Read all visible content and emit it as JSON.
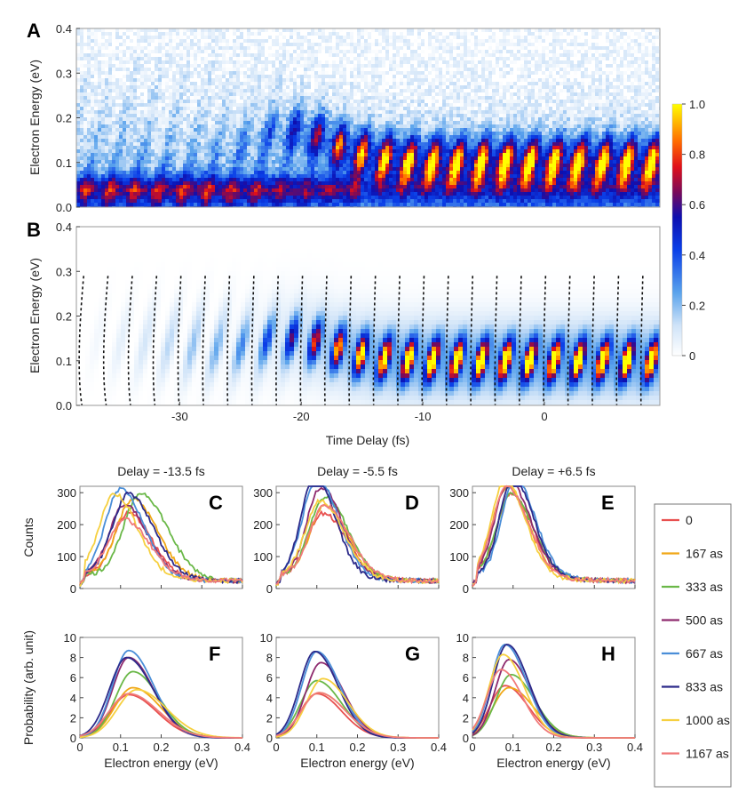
{
  "chart_data": [
    {
      "panel": "A",
      "type": "heatmap",
      "label": "A",
      "ylabel": "Electron Energy  (eV)",
      "xlabel": "",
      "xlim": [
        -38.5,
        9.5
      ],
      "ylim": [
        0,
        0.4
      ],
      "yticks": [
        "0.0",
        "0.1",
        "0.2",
        "0.3",
        "0.4"
      ],
      "fringe_period_fs": 2.0,
      "noise": true
    },
    {
      "panel": "B",
      "type": "heatmap",
      "label": "B",
      "ylabel": "Electron Energy  (eV)",
      "xlabel": "Time Delay  (fs)",
      "xlim": [
        -38.5,
        9.5
      ],
      "ylim": [
        0,
        0.4
      ],
      "xticks": [
        "-30",
        "-20",
        "-10",
        "0"
      ],
      "xtick_values": [
        -30,
        -20,
        -10,
        0
      ],
      "yticks": [
        "0.0",
        "0.1",
        "0.2",
        "0.3",
        "0.4"
      ],
      "fringe_period_fs": 2.0,
      "dashed_lines": true,
      "dashed_ymax": 0.29
    }
  ],
  "colorbar": {
    "ticks": [
      "1.0",
      "0.8",
      "0.6",
      "0.4",
      "0.2",
      "0"
    ],
    "tick_values": [
      1.0,
      0.8,
      0.6,
      0.4,
      0.2,
      0.0
    ],
    "stops": [
      {
        "v": 0.0,
        "c": "#ffffff"
      },
      {
        "v": 0.12,
        "c": "#cfe3f8"
      },
      {
        "v": 0.25,
        "c": "#5aa3ec"
      },
      {
        "v": 0.42,
        "c": "#0a3fe8"
      },
      {
        "v": 0.55,
        "c": "#0d0fb0"
      },
      {
        "v": 0.65,
        "c": "#7a0a5a"
      },
      {
        "v": 0.75,
        "c": "#e0101a"
      },
      {
        "v": 0.85,
        "c": "#ff6a00"
      },
      {
        "v": 1.0,
        "c": "#ffff00"
      }
    ]
  },
  "line_panels": {
    "titles": [
      "Delay = -13.5 fs",
      "Delay = -5.5 fs",
      "Delay = +6.5 fs"
    ],
    "top_labels": [
      "C",
      "D",
      "E"
    ],
    "bottom_labels": [
      "F",
      "G",
      "H"
    ],
    "top_ylabel": "Counts",
    "bottom_ylabel": "Probability (arb. unit)",
    "xlabel": "Electron energy (eV)",
    "xticks": [
      "0",
      "0.1",
      "0.2",
      "0.3",
      "0.4"
    ],
    "xtick_values": [
      0,
      0.1,
      0.2,
      0.3,
      0.4
    ],
    "top_yticks": [
      "0",
      "100",
      "200",
      "300"
    ],
    "top_ytick_values": [
      0,
      100,
      200,
      300
    ],
    "bottom_yticks": [
      "0",
      "2",
      "4",
      "6",
      "8",
      "10"
    ],
    "bottom_ytick_values": [
      0,
      2,
      4,
      6,
      8,
      10
    ],
    "top_ylim": [
      0,
      320
    ],
    "bottom_ylim": [
      0,
      10
    ],
    "xlim": [
      0,
      0.4
    ]
  },
  "legend": {
    "entries": [
      {
        "label": "0",
        "color": "#e8504f"
      },
      {
        "label": "167 as",
        "color": "#f0a818"
      },
      {
        "label": "333 as",
        "color": "#6ab848"
      },
      {
        "label": "500 as",
        "color": "#8e2a6e"
      },
      {
        "label": "667 as",
        "color": "#4a8ed8"
      },
      {
        "label": "833 as",
        "color": "#2c2a8a"
      },
      {
        "label": "1000 as",
        "color": "#f6d040"
      },
      {
        "label": "1167 as",
        "color": "#f07a7a"
      }
    ]
  },
  "series_params": {
    "C": [
      {
        "peak": 0.12,
        "amp": 200,
        "w": 0.07
      },
      {
        "peak": 0.13,
        "amp": 245,
        "w": 0.075
      },
      {
        "peak": 0.15,
        "amp": 265,
        "w": 0.08
      },
      {
        "peak": 0.11,
        "amp": 225,
        "w": 0.07
      },
      {
        "peak": 0.1,
        "amp": 275,
        "w": 0.07
      },
      {
        "peak": 0.12,
        "amp": 262,
        "w": 0.075
      },
      {
        "peak": 0.085,
        "amp": 258,
        "w": 0.07
      },
      {
        "peak": 0.11,
        "amp": 180,
        "w": 0.075
      }
    ],
    "D": [
      {
        "peak": 0.115,
        "amp": 200,
        "w": 0.07
      },
      {
        "peak": 0.12,
        "amp": 225,
        "w": 0.07
      },
      {
        "peak": 0.12,
        "amp": 252,
        "w": 0.07
      },
      {
        "peak": 0.11,
        "amp": 282,
        "w": 0.065
      },
      {
        "peak": 0.1,
        "amp": 312,
        "w": 0.065
      },
      {
        "peak": 0.095,
        "amp": 315,
        "w": 0.062
      },
      {
        "peak": 0.11,
        "amp": 240,
        "w": 0.07
      },
      {
        "peak": 0.12,
        "amp": 225,
        "w": 0.072
      }
    ],
    "E": [
      {
        "peak": 0.095,
        "amp": 262,
        "w": 0.065
      },
      {
        "peak": 0.085,
        "amp": 282,
        "w": 0.065
      },
      {
        "peak": 0.095,
        "amp": 256,
        "w": 0.068
      },
      {
        "peak": 0.09,
        "amp": 300,
        "w": 0.065
      },
      {
        "peak": 0.105,
        "amp": 306,
        "w": 0.062
      },
      {
        "peak": 0.1,
        "amp": 310,
        "w": 0.062
      },
      {
        "peak": 0.08,
        "amp": 300,
        "w": 0.062
      },
      {
        "peak": 0.085,
        "amp": 282,
        "w": 0.065
      }
    ],
    "F": [
      {
        "peak": 0.12,
        "amp": 4.3,
        "w": 0.085
      },
      {
        "peak": 0.13,
        "amp": 5.0,
        "w": 0.085
      },
      {
        "peak": 0.13,
        "amp": 6.6,
        "w": 0.08
      },
      {
        "peak": 0.12,
        "amp": 8.0,
        "w": 0.075
      },
      {
        "peak": 0.12,
        "amp": 8.7,
        "w": 0.075
      },
      {
        "peak": 0.115,
        "amp": 8.0,
        "w": 0.08
      },
      {
        "peak": 0.14,
        "amp": 4.8,
        "w": 0.09
      },
      {
        "peak": 0.12,
        "amp": 4.4,
        "w": 0.09
      }
    ],
    "G": [
      {
        "peak": 0.1,
        "amp": 4.4,
        "w": 0.075
      },
      {
        "peak": 0.105,
        "amp": 4.5,
        "w": 0.08
      },
      {
        "peak": 0.1,
        "amp": 5.7,
        "w": 0.075
      },
      {
        "peak": 0.11,
        "amp": 7.5,
        "w": 0.07
      },
      {
        "peak": 0.1,
        "amp": 8.6,
        "w": 0.07
      },
      {
        "peak": 0.095,
        "amp": 8.6,
        "w": 0.07
      },
      {
        "peak": 0.115,
        "amp": 5.9,
        "w": 0.075
      },
      {
        "peak": 0.105,
        "amp": 4.5,
        "w": 0.08
      }
    ],
    "H": [
      {
        "peak": 0.08,
        "amp": 5.2,
        "w": 0.07
      },
      {
        "peak": 0.09,
        "amp": 5.0,
        "w": 0.075
      },
      {
        "peak": 0.095,
        "amp": 6.3,
        "w": 0.07
      },
      {
        "peak": 0.09,
        "amp": 7.8,
        "w": 0.065
      },
      {
        "peak": 0.08,
        "amp": 9.3,
        "w": 0.065
      },
      {
        "peak": 0.085,
        "amp": 9.3,
        "w": 0.065
      },
      {
        "peak": 0.075,
        "amp": 8.3,
        "w": 0.065
      },
      {
        "peak": 0.07,
        "amp": 6.8,
        "w": 0.065
      }
    ]
  }
}
